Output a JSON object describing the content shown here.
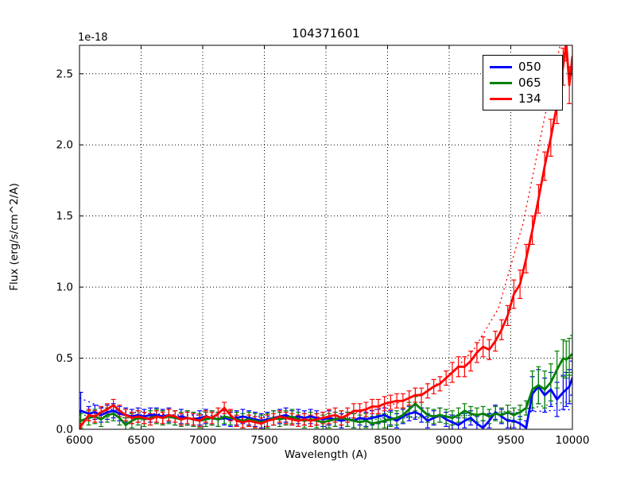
{
  "title": "104371601",
  "offset_label": "1e-18",
  "axes": {
    "xlabel": "Wavelength (A)",
    "ylabel": "Flux (erg/s/cm^2/A)",
    "xlim": [
      6000,
      10000
    ],
    "ylim": [
      0,
      2.7
    ],
    "xticks": [
      6000,
      6500,
      7000,
      7500,
      8000,
      8500,
      9000,
      9500,
      10000
    ],
    "yticks": [
      0.0,
      0.5,
      1.0,
      1.5,
      2.0,
      2.5
    ],
    "grid": "dotted"
  },
  "legend": {
    "position": "upper right",
    "items": [
      {
        "label": "050",
        "color": "#0000ff"
      },
      {
        "label": "065",
        "color": "#008000"
      },
      {
        "label": "134",
        "color": "#ff0000"
      }
    ]
  },
  "chart_data": {
    "type": "line",
    "title": "104371601",
    "xlabel": "Wavelength (A)",
    "ylabel": "Flux (erg/s/cm^2/A)",
    "y_unit_scale": "1e-18",
    "xlim": [
      6000,
      10000
    ],
    "ylim": [
      0,
      2.7
    ],
    "x": [
      6010,
      6075,
      6125,
      6175,
      6225,
      6275,
      6325,
      6375,
      6425,
      6475,
      6525,
      6575,
      6625,
      6675,
      6725,
      6775,
      6825,
      6875,
      6925,
      6975,
      7025,
      7075,
      7125,
      7175,
      7225,
      7275,
      7325,
      7375,
      7425,
      7475,
      7525,
      7575,
      7625,
      7675,
      7725,
      7775,
      7825,
      7875,
      7925,
      7975,
      8025,
      8075,
      8125,
      8175,
      8225,
      8275,
      8325,
      8375,
      8425,
      8475,
      8525,
      8575,
      8625,
      8675,
      8725,
      8775,
      8825,
      8875,
      8925,
      8975,
      9025,
      9075,
      9125,
      9175,
      9225,
      9275,
      9325,
      9375,
      9425,
      9475,
      9525,
      9575,
      9625,
      9675,
      9725,
      9775,
      9825,
      9875,
      9925,
      9950,
      9975,
      10000
    ],
    "series": [
      {
        "name": "050",
        "color": "#0000ff",
        "values": [
          0.13,
          0.11,
          0.12,
          0.1,
          0.12,
          0.13,
          0.11,
          0.1,
          0.09,
          0.1,
          0.09,
          0.1,
          0.1,
          0.09,
          0.1,
          0.08,
          0.09,
          0.08,
          0.07,
          0.08,
          0.09,
          0.08,
          0.07,
          0.08,
          0.07,
          0.08,
          0.09,
          0.08,
          0.07,
          0.06,
          0.07,
          0.08,
          0.09,
          0.1,
          0.08,
          0.09,
          0.08,
          0.09,
          0.08,
          0.07,
          0.08,
          0.07,
          0.06,
          0.07,
          0.06,
          0.08,
          0.07,
          0.08,
          0.09,
          0.1,
          0.08,
          0.06,
          0.09,
          0.11,
          0.12,
          0.1,
          0.06,
          0.08,
          0.1,
          0.07,
          0.05,
          0.03,
          0.06,
          0.08,
          0.04,
          0.01,
          0.06,
          0.12,
          0.09,
          0.06,
          0.06,
          0.04,
          0.01,
          0.25,
          0.3,
          0.24,
          0.28,
          0.21,
          0.26,
          0.28,
          0.3,
          0.36
        ],
        "errors": [
          0.13,
          0.05,
          0.05,
          0.05,
          0.05,
          0.05,
          0.05,
          0.05,
          0.05,
          0.05,
          0.05,
          0.05,
          0.05,
          0.05,
          0.05,
          0.05,
          0.05,
          0.05,
          0.05,
          0.05,
          0.05,
          0.05,
          0.05,
          0.05,
          0.05,
          0.05,
          0.05,
          0.05,
          0.05,
          0.05,
          0.05,
          0.05,
          0.05,
          0.05,
          0.05,
          0.05,
          0.05,
          0.05,
          0.05,
          0.05,
          0.05,
          0.05,
          0.05,
          0.05,
          0.05,
          0.05,
          0.05,
          0.05,
          0.05,
          0.05,
          0.05,
          0.05,
          0.05,
          0.05,
          0.05,
          0.05,
          0.05,
          0.05,
          0.05,
          0.05,
          0.05,
          0.05,
          0.05,
          0.05,
          0.05,
          0.05,
          0.05,
          0.05,
          0.05,
          0.05,
          0.05,
          0.05,
          0.05,
          0.12,
          0.12,
          0.12,
          0.12,
          0.12,
          0.12,
          0.12,
          0.12,
          0.12
        ]
      },
      {
        "name": "065",
        "color": "#008000",
        "values": [
          0.06,
          0.08,
          0.09,
          0.07,
          0.1,
          0.11,
          0.08,
          0.03,
          0.06,
          0.08,
          0.07,
          0.08,
          0.09,
          0.08,
          0.09,
          0.08,
          0.07,
          0.08,
          0.07,
          0.06,
          0.07,
          0.08,
          0.07,
          0.09,
          0.08,
          0.07,
          0.06,
          0.07,
          0.06,
          0.05,
          0.06,
          0.08,
          0.07,
          0.08,
          0.09,
          0.07,
          0.06,
          0.07,
          0.06,
          0.05,
          0.06,
          0.07,
          0.08,
          0.07,
          0.06,
          0.05,
          0.06,
          0.04,
          0.05,
          0.06,
          0.07,
          0.08,
          0.1,
          0.14,
          0.18,
          0.14,
          0.1,
          0.09,
          0.1,
          0.09,
          0.08,
          0.1,
          0.13,
          0.11,
          0.1,
          0.11,
          0.09,
          0.11,
          0.1,
          0.12,
          0.1,
          0.12,
          0.15,
          0.28,
          0.31,
          0.28,
          0.33,
          0.42,
          0.5,
          0.49,
          0.51,
          0.53
        ],
        "errors": [
          0.05,
          0.05,
          0.05,
          0.05,
          0.05,
          0.05,
          0.05,
          0.05,
          0.05,
          0.05,
          0.05,
          0.05,
          0.05,
          0.05,
          0.05,
          0.05,
          0.05,
          0.05,
          0.05,
          0.05,
          0.05,
          0.05,
          0.05,
          0.05,
          0.05,
          0.05,
          0.05,
          0.05,
          0.05,
          0.05,
          0.05,
          0.05,
          0.05,
          0.05,
          0.05,
          0.05,
          0.05,
          0.05,
          0.05,
          0.05,
          0.05,
          0.05,
          0.05,
          0.05,
          0.05,
          0.05,
          0.05,
          0.05,
          0.05,
          0.05,
          0.05,
          0.05,
          0.05,
          0.05,
          0.05,
          0.05,
          0.05,
          0.05,
          0.05,
          0.05,
          0.05,
          0.05,
          0.05,
          0.05,
          0.05,
          0.05,
          0.05,
          0.05,
          0.05,
          0.05,
          0.05,
          0.05,
          0.05,
          0.13,
          0.13,
          0.13,
          0.13,
          0.13,
          0.13,
          0.13,
          0.13,
          0.13
        ]
      },
      {
        "name": "134",
        "color": "#ff0000",
        "values": [
          0.02,
          0.1,
          0.09,
          0.12,
          0.14,
          0.17,
          0.13,
          0.1,
          0.08,
          0.09,
          0.08,
          0.07,
          0.09,
          0.08,
          0.1,
          0.09,
          0.07,
          0.08,
          0.07,
          0.06,
          0.09,
          0.08,
          0.11,
          0.15,
          0.1,
          0.06,
          0.05,
          0.06,
          0.05,
          0.04,
          0.06,
          0.07,
          0.09,
          0.08,
          0.07,
          0.06,
          0.07,
          0.06,
          0.07,
          0.08,
          0.09,
          0.1,
          0.08,
          0.1,
          0.13,
          0.13,
          0.14,
          0.16,
          0.16,
          0.18,
          0.19,
          0.2,
          0.2,
          0.22,
          0.24,
          0.24,
          0.27,
          0.3,
          0.32,
          0.36,
          0.4,
          0.44,
          0.44,
          0.48,
          0.54,
          0.58,
          0.56,
          0.62,
          0.7,
          0.8,
          0.95,
          1.02,
          1.2,
          1.4,
          1.62,
          1.85,
          2.05,
          2.28,
          2.55,
          2.72,
          2.42,
          2.62
        ],
        "errors": [
          0.02,
          0.04,
          0.04,
          0.04,
          0.04,
          0.04,
          0.04,
          0.04,
          0.04,
          0.04,
          0.04,
          0.04,
          0.04,
          0.04,
          0.04,
          0.04,
          0.04,
          0.04,
          0.04,
          0.04,
          0.04,
          0.04,
          0.04,
          0.04,
          0.04,
          0.04,
          0.04,
          0.04,
          0.04,
          0.04,
          0.04,
          0.04,
          0.04,
          0.04,
          0.04,
          0.04,
          0.04,
          0.04,
          0.04,
          0.04,
          0.05,
          0.05,
          0.05,
          0.05,
          0.05,
          0.05,
          0.05,
          0.05,
          0.05,
          0.05,
          0.05,
          0.05,
          0.05,
          0.05,
          0.05,
          0.05,
          0.05,
          0.05,
          0.05,
          0.05,
          0.07,
          0.07,
          0.07,
          0.07,
          0.07,
          0.07,
          0.07,
          0.07,
          0.07,
          0.07,
          0.1,
          0.1,
          0.1,
          0.1,
          0.1,
          0.1,
          0.13,
          0.13,
          0.13,
          0.13,
          0.13,
          0.13
        ]
      }
    ],
    "model_curves": {
      "x": [
        6000,
        6200,
        6400,
        6600,
        6800,
        7000,
        7200,
        7400,
        7600,
        7800,
        8000,
        8200,
        8400,
        8600,
        8800,
        9000,
        9200,
        9400,
        9600,
        9800,
        10000
      ],
      "series": [
        {
          "name": "050-model",
          "color": "#0000ff",
          "values": [
            0.22,
            0.15,
            0.12,
            0.11,
            0.1,
            0.1,
            0.09,
            0.09,
            0.09,
            0.09,
            0.08,
            0.08,
            0.08,
            0.08,
            0.09,
            0.09,
            0.1,
            0.11,
            0.12,
            0.13,
            0.14
          ]
        },
        {
          "name": "065-model",
          "color": "#008000",
          "values": [
            0.1,
            0.09,
            0.08,
            0.08,
            0.08,
            0.07,
            0.07,
            0.07,
            0.07,
            0.07,
            0.07,
            0.07,
            0.07,
            0.08,
            0.08,
            0.09,
            0.1,
            0.12,
            0.14,
            0.17,
            0.2
          ]
        },
        {
          "name": "134-model",
          "color": "#ff0000",
          "values": [
            0.12,
            0.11,
            0.1,
            0.09,
            0.08,
            0.08,
            0.08,
            0.07,
            0.07,
            0.08,
            0.09,
            0.11,
            0.14,
            0.19,
            0.26,
            0.38,
            0.56,
            0.85,
            1.45,
            2.3,
            3.1
          ]
        }
      ]
    }
  }
}
